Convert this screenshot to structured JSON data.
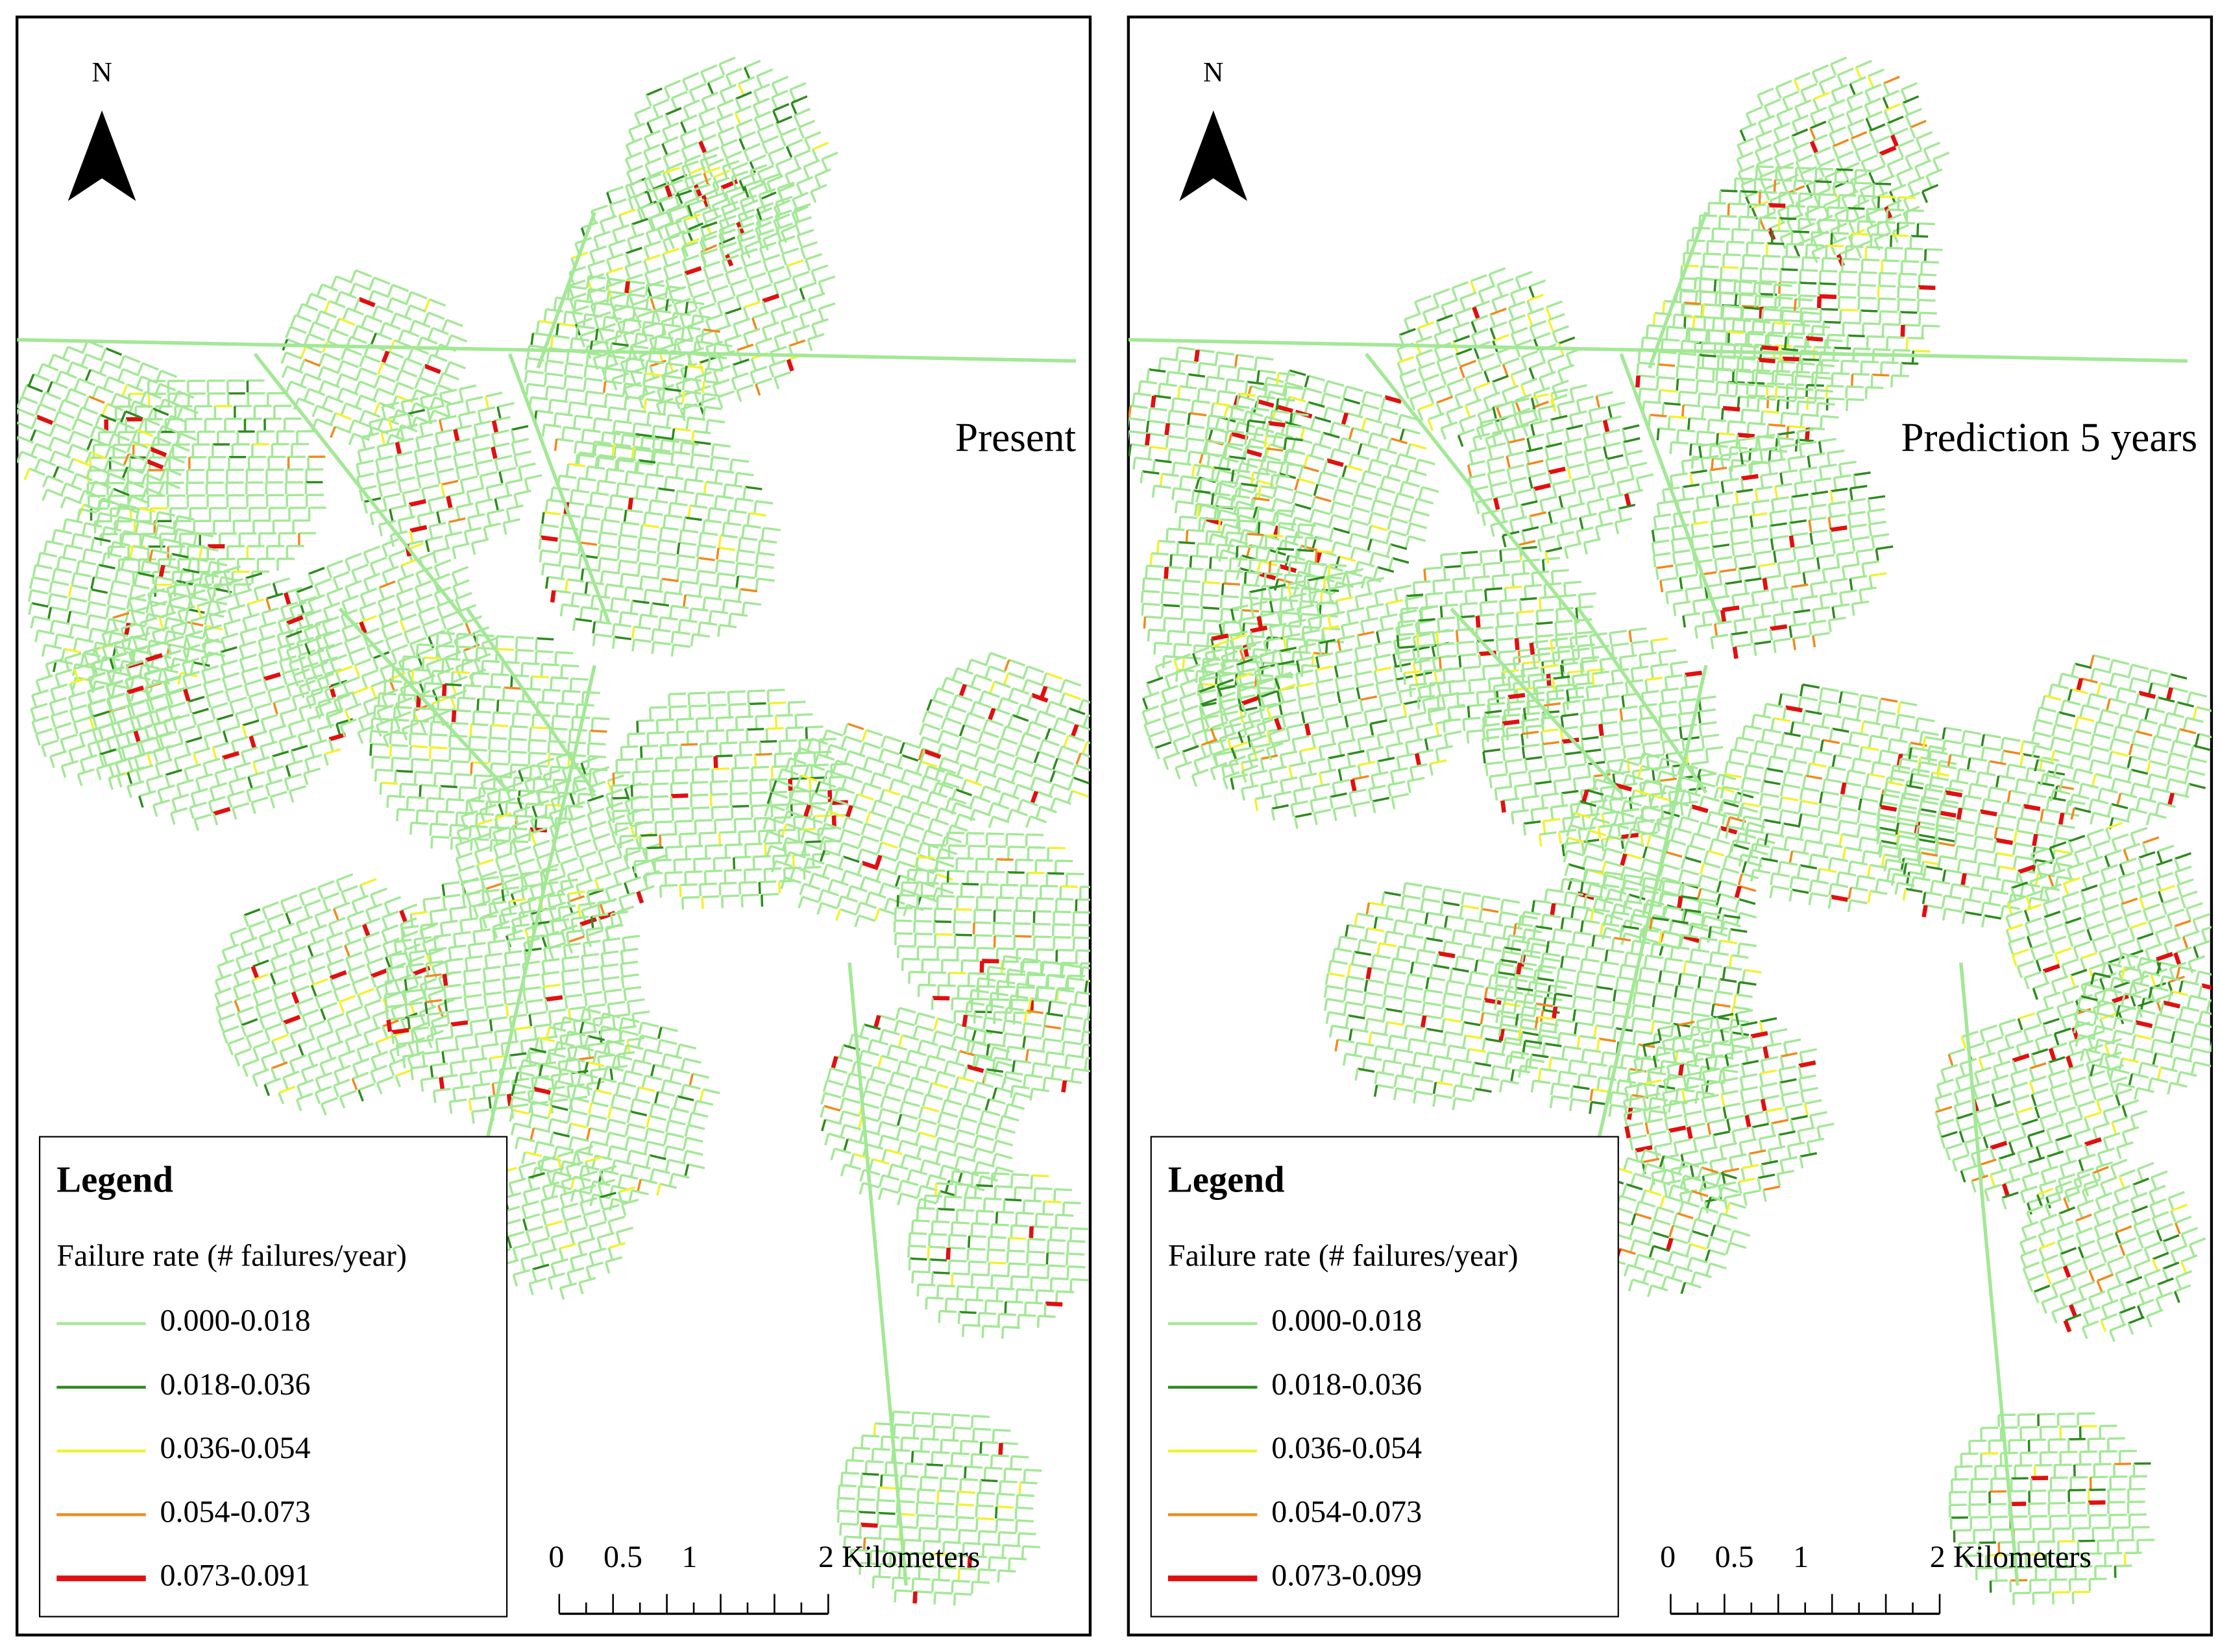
{
  "panels": [
    {
      "label": "Present",
      "north": "N",
      "legend": {
        "title": "Legend",
        "subtitle": "Failure rate (# failures/year)",
        "items": [
          {
            "label": "0.000-0.018",
            "color": "#a3e896"
          },
          {
            "label": "0.018-0.036",
            "color": "#2e8b1e"
          },
          {
            "label": "0.036-0.054",
            "color": "#f2f230"
          },
          {
            "label": "0.054-0.073",
            "color": "#f08a1c"
          },
          {
            "label": "0.073-0.091",
            "color": "#e01010"
          }
        ]
      },
      "scale_labels": [
        "0",
        "0.5",
        "1",
        "2 Kilometers"
      ]
    },
    {
      "label": "Prediction 5 years",
      "north": "N",
      "legend": {
        "title": "Legend",
        "subtitle": "Failure rate (# failures/year)",
        "items": [
          {
            "label": "0.000-0.018",
            "color": "#a3e896"
          },
          {
            "label": "0.018-0.036",
            "color": "#2e8b1e"
          },
          {
            "label": "0.036-0.054",
            "color": "#f2f230"
          },
          {
            "label": "0.054-0.073",
            "color": "#f08a1c"
          },
          {
            "label": "0.073-0.099",
            "color": "#e01010"
          }
        ]
      },
      "scale_labels": [
        "0",
        "0.5",
        "1",
        "2 Kilometers"
      ]
    }
  ]
}
